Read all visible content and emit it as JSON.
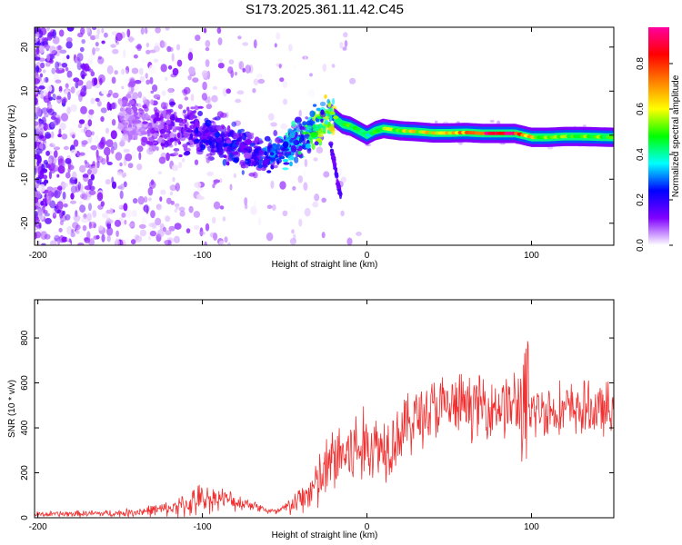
{
  "title": "S173.2025.361.11.42.C45",
  "chart_data": [
    {
      "id": "spectrogram",
      "type": "heatmap",
      "title": "S173.2025.361.11.42.C45",
      "xlabel": "Height of straight line (km)",
      "ylabel": "Frequency (Hz)",
      "xlim": [
        -202,
        150
      ],
      "ylim": [
        -25,
        24.5
      ],
      "xticks": [
        -200,
        -100,
        0,
        100
      ],
      "xtick_labels": [
        "-200",
        "-100",
        "0",
        "100"
      ],
      "yticks": [
        -20,
        -10,
        0,
        10,
        20
      ],
      "ytick_labels": [
        "-20",
        "-10",
        "0",
        "10",
        "20"
      ],
      "colorbar": {
        "label": "Normalized spectral amplitude",
        "range": [
          0,
          0.96
        ],
        "ticks": [
          0.0,
          0.2,
          0.4,
          0.6,
          0.8
        ],
        "tick_labels": [
          "0.0",
          "0.2",
          "0.4",
          "0.6",
          "0.8"
        ],
        "colors": [
          "#ffffff",
          "#8000ff",
          "#0000ff",
          "#00ffff",
          "#00ff00",
          "#ffff00",
          "#ff8000",
          "#ff0000",
          "#ff00a0"
        ]
      },
      "trace": {
        "x": [
          -150,
          -130,
          -110,
          -100,
          -90,
          -80,
          -70,
          -60,
          -50,
          -40,
          -35,
          -30,
          -25,
          -22,
          -20,
          -15,
          -10,
          -5,
          0,
          5,
          10,
          20,
          30,
          40,
          50,
          60,
          70,
          80,
          90,
          100,
          110,
          120,
          130,
          140,
          150
        ],
        "freq": [
          4,
          2,
          1,
          0,
          -1,
          -2,
          -4,
          -5,
          -3,
          -1,
          0.5,
          2,
          4,
          5,
          4,
          2.5,
          2,
          1,
          0,
          1,
          1.5,
          1,
          0.8,
          0.5,
          0.5,
          0.6,
          0.4,
          0.4,
          0.4,
          -0.5,
          -0.5,
          -0.3,
          -0.3,
          -0.4,
          -0.5
        ],
        "amplitude": [
          0.05,
          0.1,
          0.15,
          0.18,
          0.2,
          0.22,
          0.2,
          0.25,
          0.3,
          0.35,
          0.4,
          0.45,
          0.5,
          0.55,
          0.5,
          0.5,
          0.45,
          0.45,
          0.4,
          0.45,
          0.5,
          0.55,
          0.6,
          0.6,
          0.65,
          0.7,
          0.85,
          0.9,
          0.85,
          0.6,
          0.5,
          0.5,
          0.5,
          0.5,
          0.5
        ]
      },
      "branch": {
        "x": [
          -22,
          -20,
          -18,
          -16
        ],
        "freq": [
          -2,
          -6,
          -10,
          -14
        ]
      }
    },
    {
      "id": "snr",
      "type": "line",
      "xlabel": "Height of straight line (km)",
      "ylabel": "SNR (10 * v/v)",
      "xlim": [
        -202,
        150
      ],
      "ylim": [
        0,
        970
      ],
      "xticks": [
        -200,
        -100,
        0,
        100
      ],
      "xtick_labels": [
        "-200",
        "-100",
        "0",
        "100"
      ],
      "yticks": [
        0,
        200,
        400,
        600,
        800
      ],
      "ytick_labels": [
        "0",
        "200",
        "400",
        "600",
        "800"
      ],
      "color": "#f03030",
      "envelope": {
        "x": [
          -202,
          -150,
          -120,
          -110,
          -100,
          -90,
          -80,
          -70,
          -60,
          -55,
          -50,
          -40,
          -30,
          -25,
          -20,
          -15,
          -10,
          0,
          10,
          20,
          30,
          40,
          50,
          60,
          70,
          80,
          90,
          95,
          97,
          100,
          110,
          120,
          130,
          140,
          150
        ],
        "mean": [
          15,
          20,
          40,
          60,
          80,
          90,
          70,
          60,
          30,
          25,
          40,
          80,
          150,
          200,
          270,
          280,
          290,
          320,
          320,
          380,
          450,
          480,
          490,
          500,
          500,
          500,
          500,
          500,
          520,
          480,
          480,
          480,
          480,
          480,
          470
        ],
        "amp": [
          15,
          20,
          40,
          70,
          90,
          60,
          50,
          30,
          20,
          20,
          40,
          80,
          160,
          180,
          200,
          220,
          240,
          200,
          200,
          180,
          180,
          190,
          180,
          170,
          170,
          170,
          200,
          300,
          450,
          160,
          150,
          150,
          150,
          150,
          150
        ]
      }
    }
  ]
}
